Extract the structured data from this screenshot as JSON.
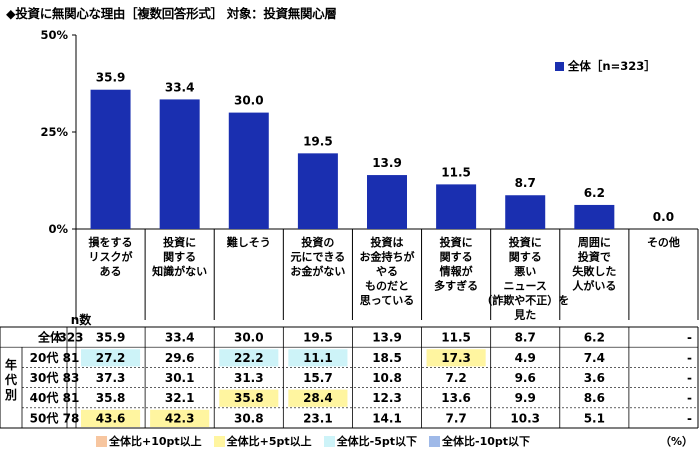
{
  "title": "◆投資に無関心な理由［複数回答形式］ 対象：投資無関心層",
  "legend_label": "全体［n=323］",
  "n_header": "n数",
  "group_label": "年代別",
  "unit": "（%）",
  "colors": {
    "bar": "#1a2fb0",
    "plus10": "#f7c6a0",
    "plus5": "#fff5a0",
    "minus5": "#cdf3f8",
    "minus10": "#9fb9e8"
  },
  "bottom_legend": [
    {
      "label": "全体比+10pt以上",
      "color": "#f7c6a0"
    },
    {
      "label": "全体比+5pt以上",
      "color": "#fff5a0"
    },
    {
      "label": "全体比-5pt以下",
      "color": "#cdf3f8"
    },
    {
      "label": "全体比-10pt以下",
      "color": "#9fb9e8"
    }
  ],
  "chart_data": {
    "type": "bar",
    "title": "◆投資に無関心な理由［複数回答形式］ 対象：投資無関心層",
    "categories": [
      [
        "損をする",
        "リスクが",
        "ある"
      ],
      [
        "投資に",
        "関する",
        "知識がない"
      ],
      [
        "難しそう"
      ],
      [
        "投資の",
        "元にできる",
        "お金がない"
      ],
      [
        "投資は",
        "お金持ちが",
        "やる",
        "ものだと",
        "思っている"
      ],
      [
        "投資に",
        "関する",
        "情報が",
        "多すぎる"
      ],
      [
        "投資に",
        "関する",
        "悪い",
        "ニュース",
        "（詐欺や不正）を",
        "見た"
      ],
      [
        "周囲に",
        "投資で",
        "失敗した",
        "人がいる"
      ],
      [
        "その他"
      ]
    ],
    "series": [
      {
        "name": "全体［n=323］",
        "values": [
          35.9,
          33.4,
          30.0,
          19.5,
          13.9,
          11.5,
          8.7,
          6.2,
          0.0
        ]
      }
    ],
    "value_labels": [
      "35.9",
      "33.4",
      "30.0",
      "19.5",
      "13.9",
      "11.5",
      "8.7",
      "6.2",
      "0.0"
    ],
    "yticks": [
      "0%",
      "25%",
      "50%"
    ],
    "ylim": [
      0,
      50
    ]
  },
  "table": {
    "rows": [
      {
        "label": "全体",
        "n": "323",
        "values": [
          "35.9",
          "33.4",
          "30.0",
          "19.5",
          "13.9",
          "11.5",
          "8.7",
          "6.2",
          "-"
        ],
        "marks": [
          "",
          "",
          "",
          "",
          "",
          "",
          "",
          "",
          ""
        ]
      },
      {
        "label": "20代",
        "n": "81",
        "values": [
          "27.2",
          "29.6",
          "22.2",
          "11.1",
          "18.5",
          "17.3",
          "4.9",
          "7.4",
          "-"
        ],
        "marks": [
          "minus5",
          "",
          "minus5",
          "minus5",
          "",
          "plus5",
          "",
          "",
          ""
        ]
      },
      {
        "label": "30代",
        "n": "83",
        "values": [
          "37.3",
          "30.1",
          "31.3",
          "15.7",
          "10.8",
          "7.2",
          "9.6",
          "3.6",
          "-"
        ],
        "marks": [
          "",
          "",
          "",
          "",
          "",
          "",
          "",
          "",
          ""
        ]
      },
      {
        "label": "40代",
        "n": "81",
        "values": [
          "35.8",
          "32.1",
          "35.8",
          "28.4",
          "12.3",
          "13.6",
          "9.9",
          "8.6",
          "-"
        ],
        "marks": [
          "",
          "",
          "plus5",
          "plus5",
          "",
          "",
          "",
          "",
          ""
        ]
      },
      {
        "label": "50代",
        "n": "78",
        "values": [
          "43.6",
          "42.3",
          "30.8",
          "23.1",
          "14.1",
          "7.7",
          "10.3",
          "5.1",
          "-"
        ],
        "marks": [
          "plus5",
          "plus5",
          "",
          "",
          "",
          "",
          "",
          "",
          ""
        ]
      }
    ]
  }
}
